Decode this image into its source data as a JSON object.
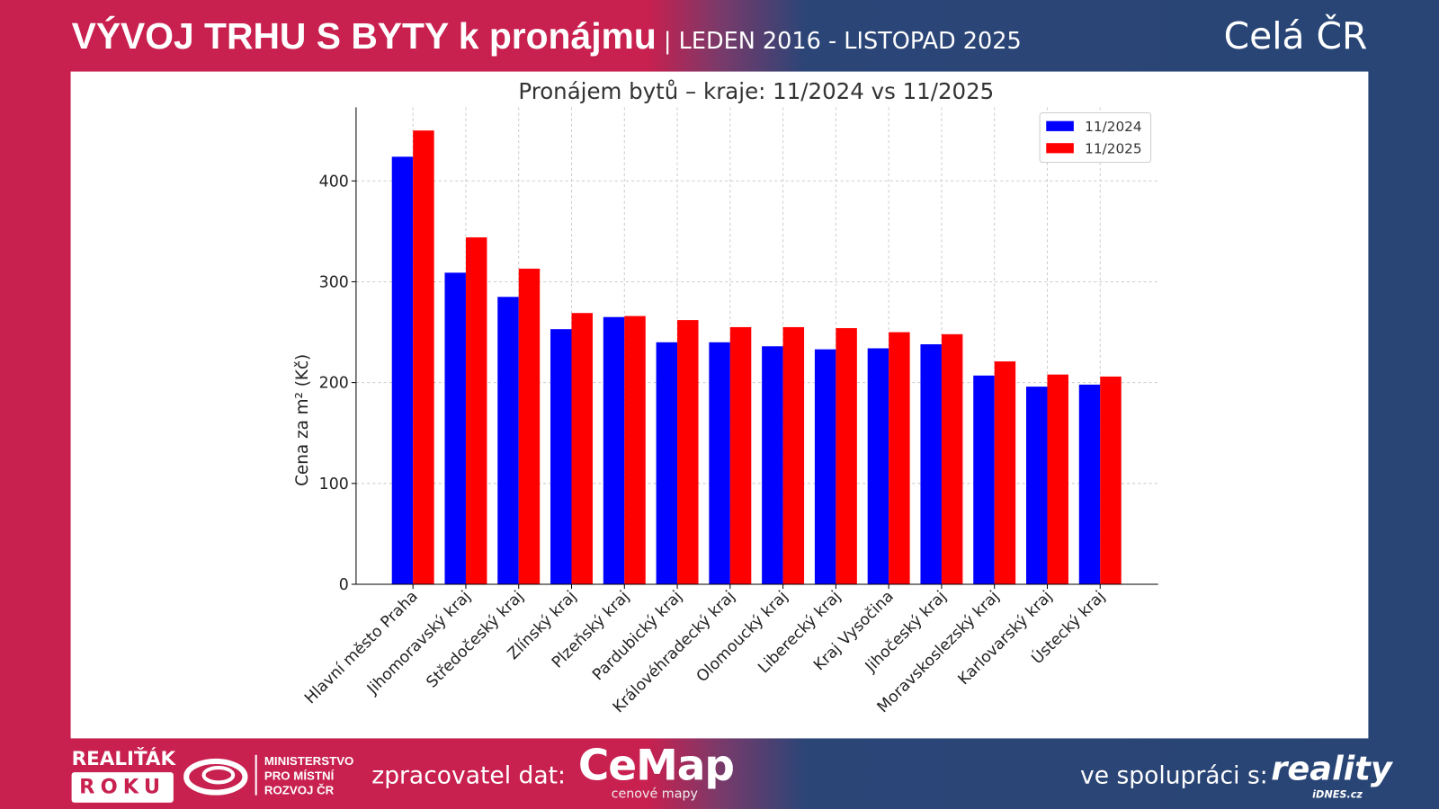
{
  "header": {
    "title": "VÝVOJ TRHU S BYTY k pronájmu",
    "subtitle": "| LEDEN 2016 - LISTOPAD 2025",
    "region": "Celá ČR"
  },
  "footer": {
    "award_line1": "REALIŤÁK",
    "award_line2": "ROKU",
    "ministry_lines": [
      "MINISTERSTVO",
      "PRO MÍSTNÍ",
      "ROZVOJ ČR"
    ],
    "processor_label": "zpracovatel dat:",
    "cemap_logo": "CeMap",
    "cemap_sub": "cenové mapy",
    "partner_label": "ve spolupráci s:",
    "partner_logo": "reality",
    "partner_sub": "iDNES.cz"
  },
  "colors": {
    "series1": "#0000ff",
    "series2": "#ff0000"
  },
  "chart_data": {
    "type": "bar",
    "title": "Pronájem bytů – kraje: 11/2024 vs 11/2025",
    "xlabel": "",
    "ylabel": "Cena za m² (Kč)",
    "ylim": [
      0,
      473
    ],
    "yticks": [
      0,
      100,
      200,
      300,
      400
    ],
    "grid": true,
    "legend_position": "top-right",
    "categories": [
      "Hlavní město Praha",
      "Jihomoravský kraj",
      "Středočeský kraj",
      "Zlínský kraj",
      "Plzeňský kraj",
      "Pardubický kraj",
      "Královéhradecký kraj",
      "Olomoucký kraj",
      "Liberecký kraj",
      "Kraj Vysočina",
      "Jihočeský kraj",
      "Moravskoslezský kraj",
      "Karlovarský kraj",
      "Ústecký kraj"
    ],
    "series": [
      {
        "name": "11/2024",
        "values": [
          424,
          309,
          285,
          253,
          265,
          240,
          240,
          236,
          233,
          234,
          238,
          207,
          196,
          198
        ]
      },
      {
        "name": "11/2025",
        "values": [
          450,
          344,
          313,
          269,
          266,
          262,
          255,
          255,
          254,
          250,
          248,
          221,
          208,
          206
        ]
      }
    ]
  }
}
